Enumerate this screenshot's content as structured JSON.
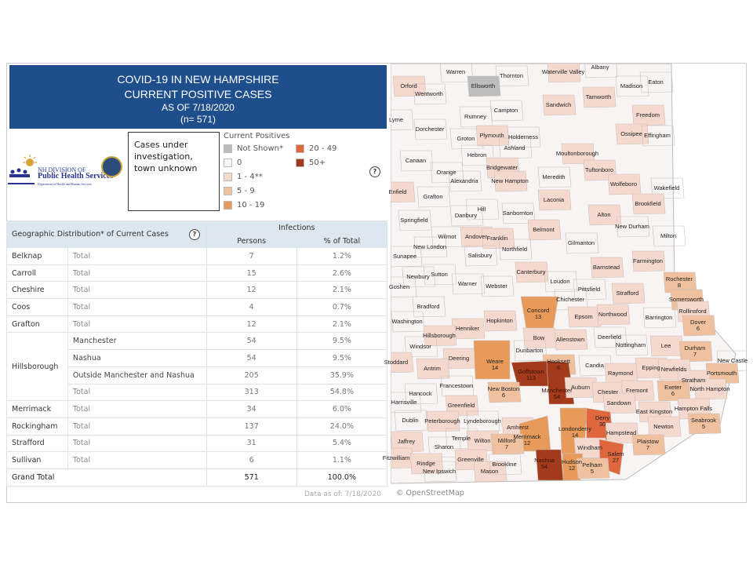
{
  "header": {
    "line1": "COVID-19 IN NEW HAMPSHIRE",
    "line2": "CURRENT POSITIVE CASES",
    "line3": "AS OF 7/18/2020",
    "line4": "(n= 571)"
  },
  "logo": {
    "line1": "NH DIVISION OF",
    "line2": "Public Health Services",
    "line3": "Department of Health and Human Services"
  },
  "unknown_box": "Cases under investigation, town unknown",
  "legend": {
    "title": "Current Positives",
    "items": [
      {
        "label": "Not Shown*",
        "color": "#bdbdbd"
      },
      {
        "label": "0",
        "color": "#f8f4f3"
      },
      {
        "label": "1 - 4**",
        "color": "#f5d9cf"
      },
      {
        "label": "5 - 9",
        "color": "#f0c19f"
      },
      {
        "label": "10 - 19",
        "color": "#e79a5a"
      },
      {
        "label": "20 - 49",
        "color": "#e0663e"
      },
      {
        "label": "50+",
        "color": "#a23a1b"
      }
    ]
  },
  "help_icon": "?",
  "table": {
    "title": "Geographic Distribution* of Current Cases",
    "group_header": "Infections",
    "col_persons": "Persons",
    "col_pct": "% of Total",
    "rows": [
      {
        "county": "Belknap",
        "sub": "Total",
        "persons": "7",
        "pct": "1.2%"
      },
      {
        "county": "Carroll",
        "sub": "Total",
        "persons": "15",
        "pct": "2.6%"
      },
      {
        "county": "Cheshire",
        "sub": "Total",
        "persons": "12",
        "pct": "2.1%"
      },
      {
        "county": "Coos",
        "sub": "Total",
        "persons": "4",
        "pct": "0.7%"
      },
      {
        "county": "Grafton",
        "sub": "Total",
        "persons": "12",
        "pct": "2.1%"
      },
      {
        "county": "Hillsborough",
        "sub": "Manchester",
        "persons": "54",
        "pct": "9.5%"
      },
      {
        "county": "",
        "sub": "Nashua",
        "persons": "54",
        "pct": "9.5%"
      },
      {
        "county": "",
        "sub": "Outside Manchester and Nashua",
        "persons": "205",
        "pct": "35.9%"
      },
      {
        "county": "",
        "sub": "Total",
        "persons": "313",
        "pct": "54.8%"
      },
      {
        "county": "Merrimack",
        "sub": "Total",
        "persons": "34",
        "pct": "6.0%"
      },
      {
        "county": "Rockingham",
        "sub": "Total",
        "persons": "137",
        "pct": "24.0%"
      },
      {
        "county": "Strafford",
        "sub": "Total",
        "persons": "31",
        "pct": "5.4%"
      },
      {
        "county": "Sullivan",
        "sub": "Total",
        "persons": "6",
        "pct": "1.1%"
      }
    ],
    "grand_total": {
      "label": "Grand Total",
      "persons": "571",
      "pct": "100.0%"
    },
    "data_as_of": "Data as of:  7/18/2020"
  },
  "map": {
    "attribution": "© OpenStreetMap",
    "towns": [
      {
        "name": "Warren",
        "cat": 0
      },
      {
        "name": "Thornton",
        "cat": 0
      },
      {
        "name": "Waterville Valley",
        "cat": 1
      },
      {
        "name": "Albany",
        "cat": 0
      },
      {
        "name": "Orford",
        "cat": 1
      },
      {
        "name": "Ellsworth",
        "cat": -1
      },
      {
        "name": "Wentworth",
        "cat": 0
      },
      {
        "name": "Madison",
        "cat": 0
      },
      {
        "name": "Eaton",
        "cat": 0
      },
      {
        "name": "Tamworth",
        "cat": 1
      },
      {
        "name": "Sandwich",
        "cat": 1
      },
      {
        "name": "Lyme",
        "cat": 0
      },
      {
        "name": "Campton",
        "cat": 0
      },
      {
        "name": "Rumney",
        "cat": 0
      },
      {
        "name": "Freedom",
        "cat": 1
      },
      {
        "name": "Dorchester",
        "cat": 0
      },
      {
        "name": "Groton",
        "cat": 0
      },
      {
        "name": "Plymouth",
        "cat": 1
      },
      {
        "name": "Holderness",
        "cat": 0
      },
      {
        "name": "Ossipee",
        "cat": 1
      },
      {
        "name": "Effingham",
        "cat": 0
      },
      {
        "name": "Ashland",
        "cat": 0
      },
      {
        "name": "Hebron",
        "cat": 0
      },
      {
        "name": "Moultonborough",
        "cat": 1
      },
      {
        "name": "Canaan",
        "cat": 0
      },
      {
        "name": "Bridgewater",
        "cat": 1
      },
      {
        "name": "Tuftonboro",
        "cat": 1
      },
      {
        "name": "Orange",
        "cat": 0
      },
      {
        "name": "Alexandria",
        "cat": 0
      },
      {
        "name": "New Hampton",
        "cat": 1
      },
      {
        "name": "Meredith",
        "cat": 0
      },
      {
        "name": "Wolfeboro",
        "cat": 1
      },
      {
        "name": "Wakefield",
        "cat": 0
      },
      {
        "name": "Enfield",
        "cat": 1
      },
      {
        "name": "Laconia",
        "cat": 1
      },
      {
        "name": "Grafton",
        "cat": 0
      },
      {
        "name": "Brookfield",
        "cat": 1
      },
      {
        "name": "Alton",
        "cat": 1
      },
      {
        "name": "Hill",
        "cat": 0
      },
      {
        "name": "Sanbornton",
        "cat": 0
      },
      {
        "name": "Danbury",
        "cat": 0
      },
      {
        "name": "New Durham",
        "cat": 0
      },
      {
        "name": "Springfield",
        "cat": 0
      },
      {
        "name": "Belmont",
        "cat": 1
      },
      {
        "name": "Milton",
        "cat": 0
      },
      {
        "name": "Wilmot",
        "cat": 0
      },
      {
        "name": "Andover",
        "cat": 1
      },
      {
        "name": "Franklin",
        "cat": 1
      },
      {
        "name": "Northfield",
        "cat": 0
      },
      {
        "name": "Gilmanton",
        "cat": 0
      },
      {
        "name": "New London",
        "cat": 0
      },
      {
        "name": "Sunapee",
        "cat": 0
      },
      {
        "name": "Salisbury",
        "cat": 0
      },
      {
        "name": "Farmington",
        "cat": 1
      },
      {
        "name": "Barnstead",
        "cat": 1
      },
      {
        "name": "Canterbury",
        "cat": 1
      },
      {
        "name": "Newbury",
        "cat": 0
      },
      {
        "name": "Sutton",
        "cat": 0
      },
      {
        "name": "Rochester",
        "count": "8",
        "cat": 3
      },
      {
        "name": "Loudon",
        "cat": 0
      },
      {
        "name": "Goshen",
        "cat": 0
      },
      {
        "name": "Warner",
        "cat": 0
      },
      {
        "name": "Webster",
        "cat": 0
      },
      {
        "name": "Pittsfield",
        "cat": 0
      },
      {
        "name": "Strafford",
        "cat": 1
      },
      {
        "name": "Chichester",
        "cat": 0
      },
      {
        "name": "Somersworth",
        "cat": 3
      },
      {
        "name": "Bradford",
        "cat": 0
      },
      {
        "name": "Concord",
        "count": "13",
        "cat": 4
      },
      {
        "name": "Rollinsford",
        "cat": 1
      },
      {
        "name": "Washington",
        "cat": 0
      },
      {
        "name": "Epsom",
        "cat": 1
      },
      {
        "name": "Northwood",
        "cat": 1
      },
      {
        "name": "Barrington",
        "cat": 0
      },
      {
        "name": "Dover",
        "count": "6",
        "cat": 3
      },
      {
        "name": "Hopkinton",
        "cat": 1
      },
      {
        "name": "Henniker",
        "cat": 1
      },
      {
        "name": "Hillsborough",
        "cat": 1
      },
      {
        "name": "Bow",
        "cat": 1
      },
      {
        "name": "Allenstown",
        "cat": 1
      },
      {
        "name": "Deerfield",
        "cat": 0
      },
      {
        "name": "Nottingham",
        "cat": 0
      },
      {
        "name": "Lee",
        "cat": 1
      },
      {
        "name": "Durham",
        "count": "7",
        "cat": 3
      },
      {
        "name": "Windsor",
        "cat": 0
      },
      {
        "name": "Dunbarton",
        "cat": 0
      },
      {
        "name": "Deering",
        "cat": 1
      },
      {
        "name": "Weare",
        "count": "14",
        "cat": 4
      },
      {
        "name": "Antrim",
        "cat": 1
      },
      {
        "name": "Hooksett",
        "count": "6",
        "cat": 3
      },
      {
        "name": "Candia",
        "cat": 0
      },
      {
        "name": "Stoddard",
        "cat": 1
      },
      {
        "name": "Epping",
        "cat": 1
      },
      {
        "name": "Raymond",
        "cat": 1
      },
      {
        "name": "New Castle",
        "cat": 0
      },
      {
        "name": "Newfields",
        "cat": 1
      },
      {
        "name": "Portsmouth",
        "cat": 3
      },
      {
        "name": "Goffstown",
        "count": "113",
        "cat": 6
      },
      {
        "name": "Stratham",
        "cat": 1
      },
      {
        "name": "Manchester",
        "count": "54",
        "cat": 6
      },
      {
        "name": "Auburn",
        "cat": 1
      },
      {
        "name": "Francestown",
        "cat": 0
      },
      {
        "name": "Hancock",
        "cat": 0
      },
      {
        "name": "Harrisville",
        "cat": 0
      },
      {
        "name": "New Boston",
        "count": "6",
        "cat": 3
      },
      {
        "name": "Exeter",
        "count": "6",
        "cat": 3
      },
      {
        "name": "North Hampton",
        "cat": 1
      },
      {
        "name": "Chester",
        "cat": 1
      },
      {
        "name": "Fremont",
        "cat": 1
      },
      {
        "name": "Greenfield",
        "cat": 1
      },
      {
        "name": "Sandown",
        "cat": 1
      },
      {
        "name": "East Kingston",
        "cat": 1
      },
      {
        "name": "Hampton Falls",
        "cat": 1
      },
      {
        "name": "Seabrook",
        "count": "5",
        "cat": 3
      },
      {
        "name": "Derry",
        "count": "30",
        "cat": 5
      },
      {
        "name": "Dublin",
        "cat": 0
      },
      {
        "name": "Peterborough",
        "cat": 1
      },
      {
        "name": "Lyndeborough",
        "cat": 0
      },
      {
        "name": "Amherst",
        "cat": 1
      },
      {
        "name": "Londonderry",
        "count": "14",
        "cat": 4
      },
      {
        "name": "Hampstead",
        "cat": 1
      },
      {
        "name": "Newton",
        "cat": 1
      },
      {
        "name": "Plaistow",
        "count": "7",
        "cat": 3
      },
      {
        "name": "Merrimack",
        "count": "12",
        "cat": 4
      },
      {
        "name": "Jaffrey",
        "cat": 1
      },
      {
        "name": "Temple",
        "cat": 0
      },
      {
        "name": "Sharon",
        "cat": 0
      },
      {
        "name": "Wilton",
        "cat": 1
      },
      {
        "name": "Milford",
        "count": "7",
        "cat": 3
      },
      {
        "name": "Windham",
        "cat": 1
      },
      {
        "name": "Salem",
        "count": "27",
        "cat": 5
      },
      {
        "name": "Fitzwilliam",
        "cat": 1
      },
      {
        "name": "Rindge",
        "cat": 1
      },
      {
        "name": "Greenville",
        "cat": 1
      },
      {
        "name": "New Ipswich",
        "cat": 0
      },
      {
        "name": "Mason",
        "cat": 1
      },
      {
        "name": "Brookline",
        "cat": 0
      },
      {
        "name": "Nashua",
        "count": "54",
        "cat": 6
      },
      {
        "name": "Hudson",
        "count": "12",
        "cat": 4
      },
      {
        "name": "Pelham",
        "count": "5",
        "cat": 3
      }
    ]
  }
}
